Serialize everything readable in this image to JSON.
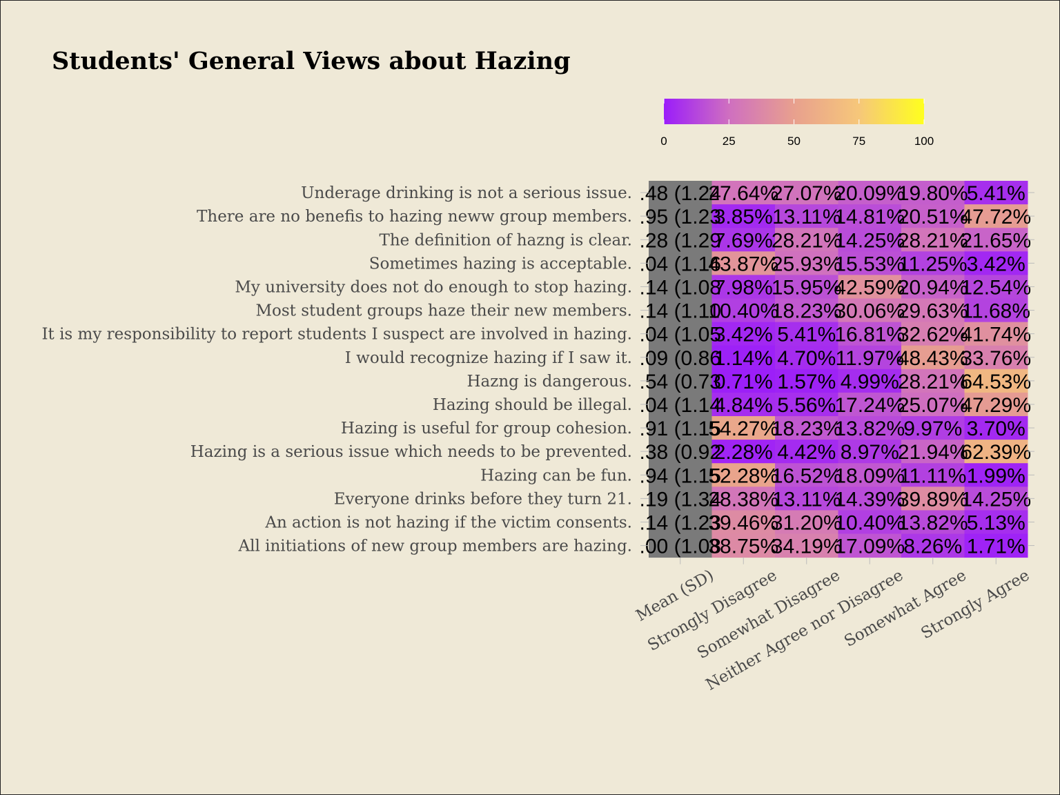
{
  "title": "Students' General Views about Hazing",
  "chart_data": {
    "type": "heatmap",
    "title": "Students' General Views about Hazing",
    "columns": [
      "Mean (SD)",
      "Strongly Disagree",
      "Somewhat Disagree",
      "Neither Agree nor Disagree",
      "Somewhat Agree",
      "Strongly Agree"
    ],
    "rows": [
      "Underage drinking is not a serious issue.",
      "There are no benefis to hazing neww group members.",
      "The definition of hazng is clear.",
      "Sometimes hazing is acceptable.",
      "My university does not do enough to stop hazing.",
      "Most student groups haze their new members.",
      "It is my responsibility to report students I suspect are involved in hazing.",
      "I would recognize hazing if I saw it.",
      "Hazng is dangerous.",
      "Hazing should be illegal.",
      "Hazing is useful for group cohesion.",
      "Hazing is a serious issue which needs to be prevented.",
      "Hazing can be fun.",
      "Everyone drinks before they turn 21.",
      "An action is not hazing if the victim consents.",
      "All initiations of new group members are hazing."
    ],
    "mean_sd_labels": [
      ".48 (1.24",
      ".95 (1.23",
      ".28 (1.29",
      ".04 (1.16",
      ".14 (1.08",
      ".14 (1.10",
      ".04 (1.05",
      ".09 (0.86",
      ".54 (0.73",
      ".04 (1.14",
      ".91 (1.15",
      ".38 (0.92",
      ".94 (1.15",
      ".19 (1.34",
      ".14 (1.23",
      ".00 (1.08"
    ],
    "values": [
      [
        27.64,
        27.07,
        20.09,
        19.8,
        5.41
      ],
      [
        3.85,
        13.11,
        14.81,
        20.51,
        47.72
      ],
      [
        7.69,
        28.21,
        14.25,
        28.21,
        21.65
      ],
      [
        43.87,
        25.93,
        15.53,
        11.25,
        3.42
      ],
      [
        7.98,
        15.95,
        42.59,
        20.94,
        12.54
      ],
      [
        10.4,
        18.23,
        30.06,
        29.63,
        11.68
      ],
      [
        3.42,
        5.41,
        16.81,
        32.62,
        41.74
      ],
      [
        1.14,
        4.7,
        11.97,
        48.43,
        33.76
      ],
      [
        0.71,
        1.57,
        4.99,
        28.21,
        64.53
      ],
      [
        4.84,
        5.56,
        17.24,
        25.07,
        47.29
      ],
      [
        54.27,
        18.23,
        13.82,
        9.97,
        3.7
      ],
      [
        2.28,
        4.42,
        8.97,
        21.94,
        62.39
      ],
      [
        52.28,
        16.52,
        18.09,
        11.11,
        1.99
      ],
      [
        28.38,
        13.11,
        14.39,
        39.89,
        14.25
      ],
      [
        39.46,
        31.2,
        10.4,
        13.82,
        5.13
      ],
      [
        38.75,
        34.19,
        17.09,
        8.26,
        1.71
      ]
    ],
    "value_suffix": "%",
    "colorscale": {
      "min": 0,
      "max": 100,
      "ticks": [
        0,
        25,
        50,
        75,
        100
      ],
      "colors": [
        "#9b1dfa",
        "#cf6fc0",
        "#e8a08e",
        "#f6c77a",
        "#ffff1e"
      ]
    },
    "mean_column_color": "#7a7a7a",
    "legend_position": "top-right"
  }
}
